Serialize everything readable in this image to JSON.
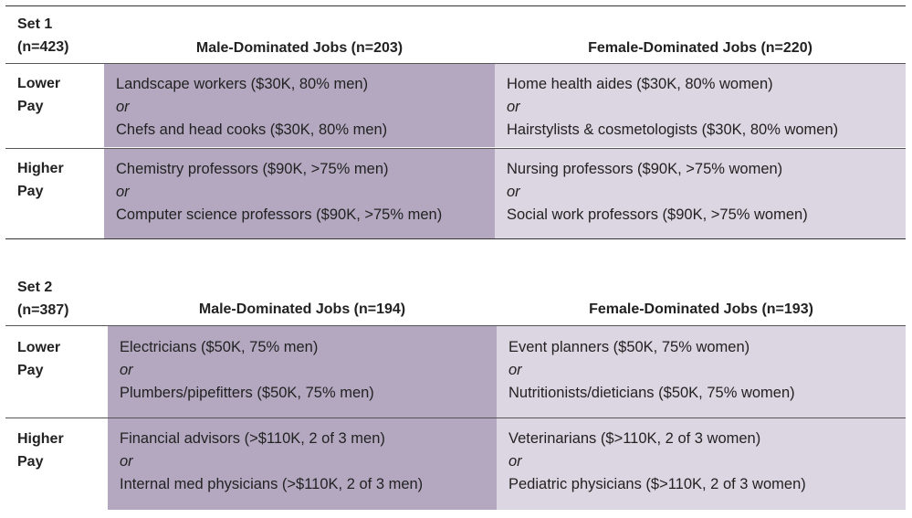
{
  "sets": [
    {
      "set_label": "Set 1",
      "set_n": "(n=423)",
      "male_header": "Male-Dominated Jobs (n=203)",
      "female_header": "Female-Dominated Jobs (n=220)",
      "rows": [
        {
          "label_line1": "Lower",
          "label_line2": "Pay",
          "male": [
            "Landscape workers ($30K, 80% men)",
            "or",
            "Chefs and head cooks ($30K, 80% men)"
          ],
          "female": [
            "Home health aides ($30K, 80% women)",
            "or",
            "Hairstylists & cosmetologists ($30K, 80% women)"
          ]
        },
        {
          "label_line1": "Higher",
          "label_line2": "Pay",
          "male": [
            "Chemistry professors ($90K, >75% men)",
            "or",
            "Computer science professors ($90K, >75% men)"
          ],
          "female": [
            "Nursing professors ($90K, >75% women)",
            "or",
            "Social work professors ($90K, >75% women)"
          ]
        }
      ]
    },
    {
      "set_label": "Set 2",
      "set_n": "(n=387)",
      "male_header": "Male-Dominated Jobs (n=194)",
      "female_header": "Female-Dominated Jobs (n=193)",
      "rows": [
        {
          "label_line1": "Lower",
          "label_line2": "Pay",
          "male": [
            "Electricians ($50K, 75% men)",
            "or",
            "Plumbers/pipefitters ($50K, 75% men)"
          ],
          "female": [
            "Event planners ($50K, 75% women)",
            "or",
            "Nutritionists/dieticians ($50K, 75% women)"
          ]
        },
        {
          "label_line1": "Higher",
          "label_line2": "Pay",
          "male": [
            "Financial advisors (>$110K, 2 of 3 men)",
            "or",
            "Internal med physicians (>$110K, 2 of 3 men)"
          ],
          "female": [
            "Veterinarians ($>110K, 2 of 3 women)",
            "or",
            "Pediatric physicians ($>110K, 2 of 3 women)"
          ]
        }
      ]
    }
  ],
  "colors": {
    "male_fill": "#b3a8c0",
    "female_fill": "#dcd6e2"
  }
}
